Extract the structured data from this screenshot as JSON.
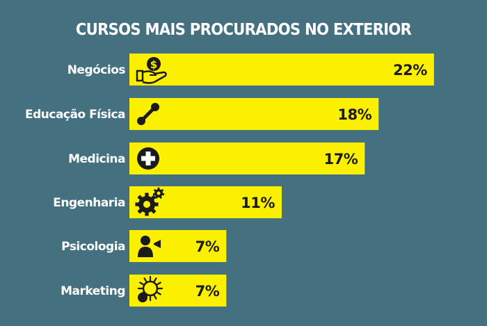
{
  "chart_data": {
    "type": "bar",
    "orientation": "horizontal",
    "title": "CURSOS MAIS PROCURADOS NO EXTERIOR",
    "categories": [
      "Negócios",
      "Educação Física",
      "Medicina",
      "Engenharia",
      "Psicologia",
      "Marketing"
    ],
    "values": [
      22,
      18,
      17,
      11,
      7,
      7
    ],
    "value_labels": [
      "22%",
      "18%",
      "17%",
      "11%",
      "7%",
      "7%"
    ],
    "icons": [
      "money-hand-icon",
      "dumbbell-icon",
      "medical-cross-icon",
      "gears-icon",
      "person-camera-icon",
      "lightbulb-icon"
    ],
    "unit": "%",
    "grid": false,
    "legend": "none"
  },
  "colors": {
    "background": "#44707f",
    "bar": "#fbf000",
    "label_text": "#ffffff",
    "value_text": "#1b1b1b",
    "icon": "#1b1b1b"
  }
}
